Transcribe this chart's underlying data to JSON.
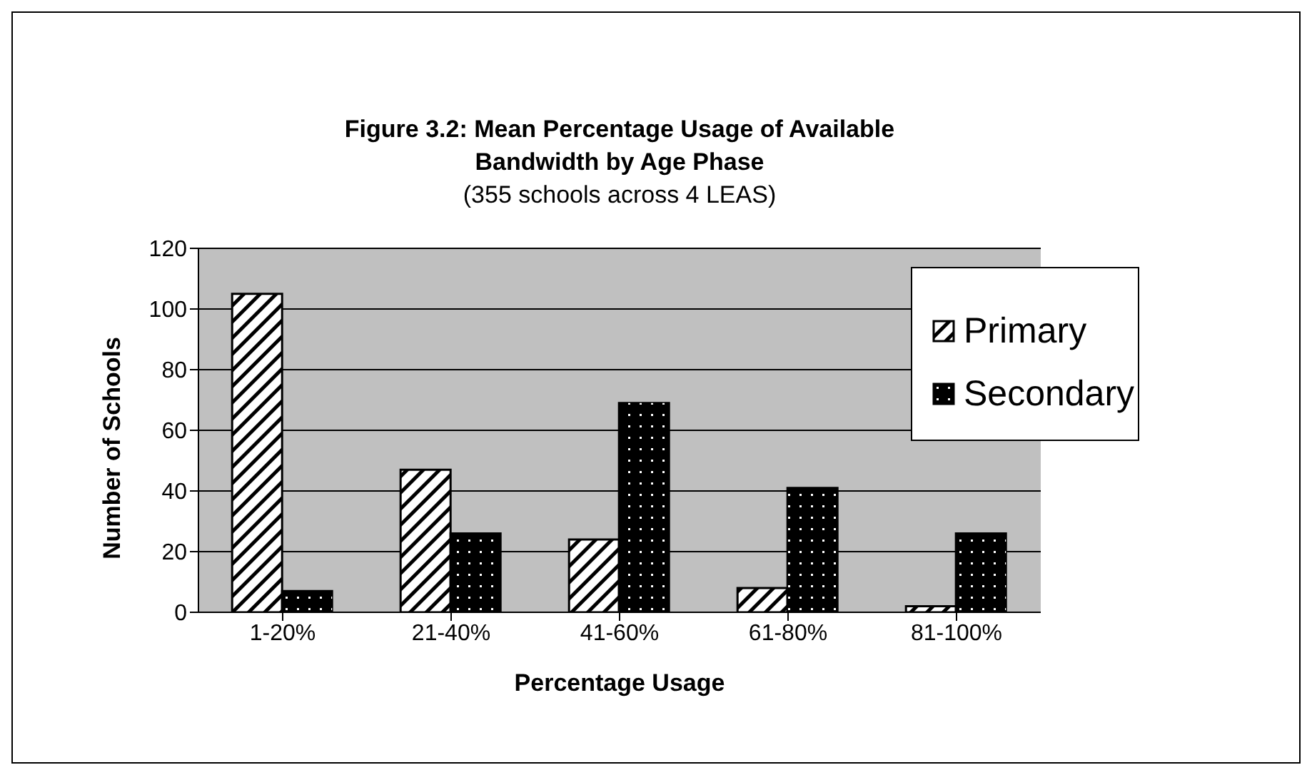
{
  "chart_data": {
    "type": "bar",
    "title": "Figure 3.2: Mean Percentage Usage of Available Bandwidth by Age Phase",
    "subtitle": "(355 schools across 4 LEAS)",
    "xlabel": "Percentage Usage",
    "ylabel": "Number of Schools",
    "categories": [
      "1-20%",
      "21-40%",
      "41-60%",
      "61-80%",
      "81-100%"
    ],
    "series": [
      {
        "name": "Primary",
        "color": "#ffffff",
        "values": [
          105,
          47,
          24,
          8,
          2
        ]
      },
      {
        "name": "Secondary",
        "color": "#000000",
        "values": [
          7,
          26,
          69,
          41,
          26
        ]
      }
    ],
    "ylim": [
      0,
      120
    ],
    "yticks": [
      0,
      20,
      40,
      60,
      80,
      100,
      120
    ],
    "grid": "y",
    "legend": "right"
  }
}
